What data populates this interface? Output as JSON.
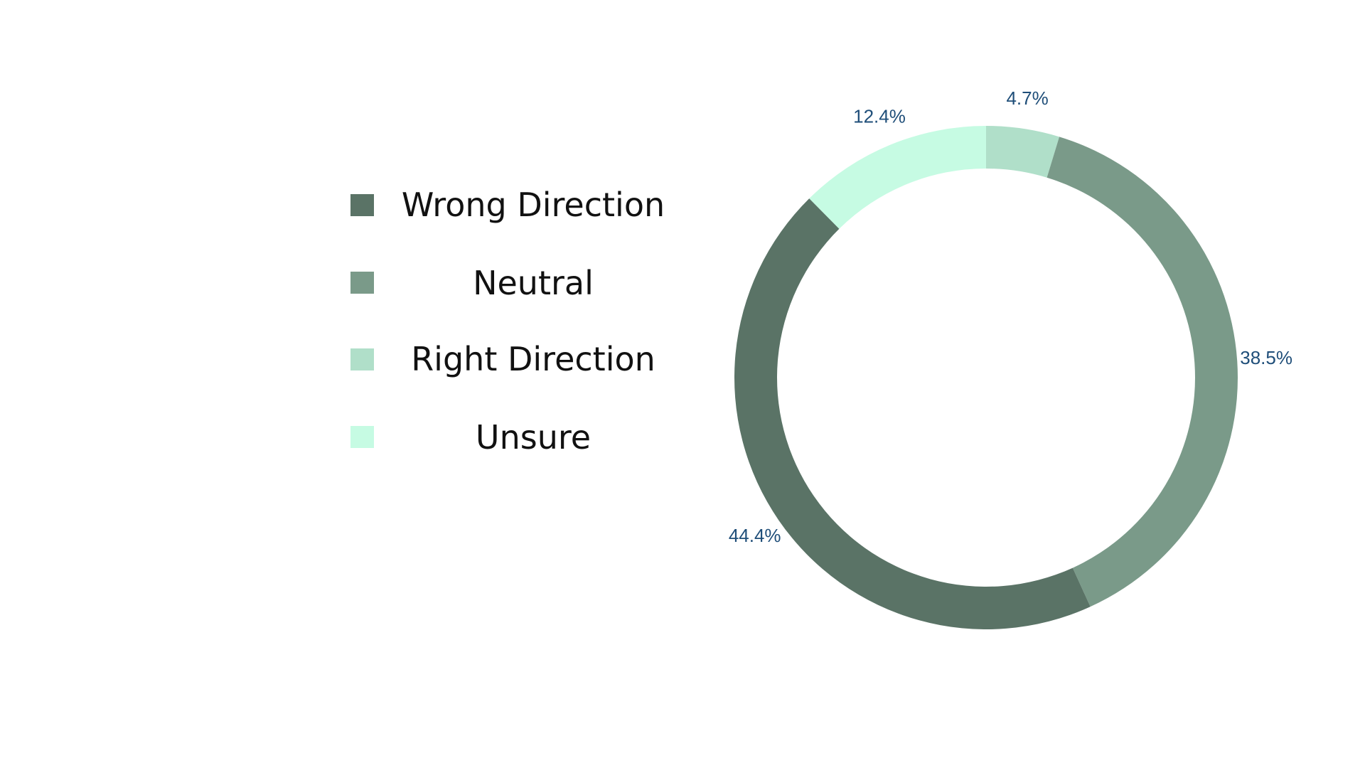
{
  "chart_data": {
    "type": "pie",
    "variant": "donut",
    "title": "",
    "legend_position": "left",
    "series": [
      {
        "name": "Wrong Direction",
        "value": 44.4,
        "label": "44.4%",
        "color": "#5a7366"
      },
      {
        "name": "Neutral",
        "value": 38.5,
        "label": "38.5%",
        "color": "#7a9a89"
      },
      {
        "name": "Right Direction",
        "value": 4.7,
        "label": "4.7%",
        "color": "#b0dfc9"
      },
      {
        "name": "Unsure",
        "value": 12.4,
        "label": "12.4%",
        "color": "#c6fbe3"
      }
    ],
    "slice_order_clockwise_from_top": [
      "Right Direction",
      "Neutral",
      "Wrong Direction",
      "Unsure"
    ]
  },
  "colors": {
    "legend_text": "#111111",
    "percent_label": "#1f4e79",
    "background": "#ffffff"
  }
}
